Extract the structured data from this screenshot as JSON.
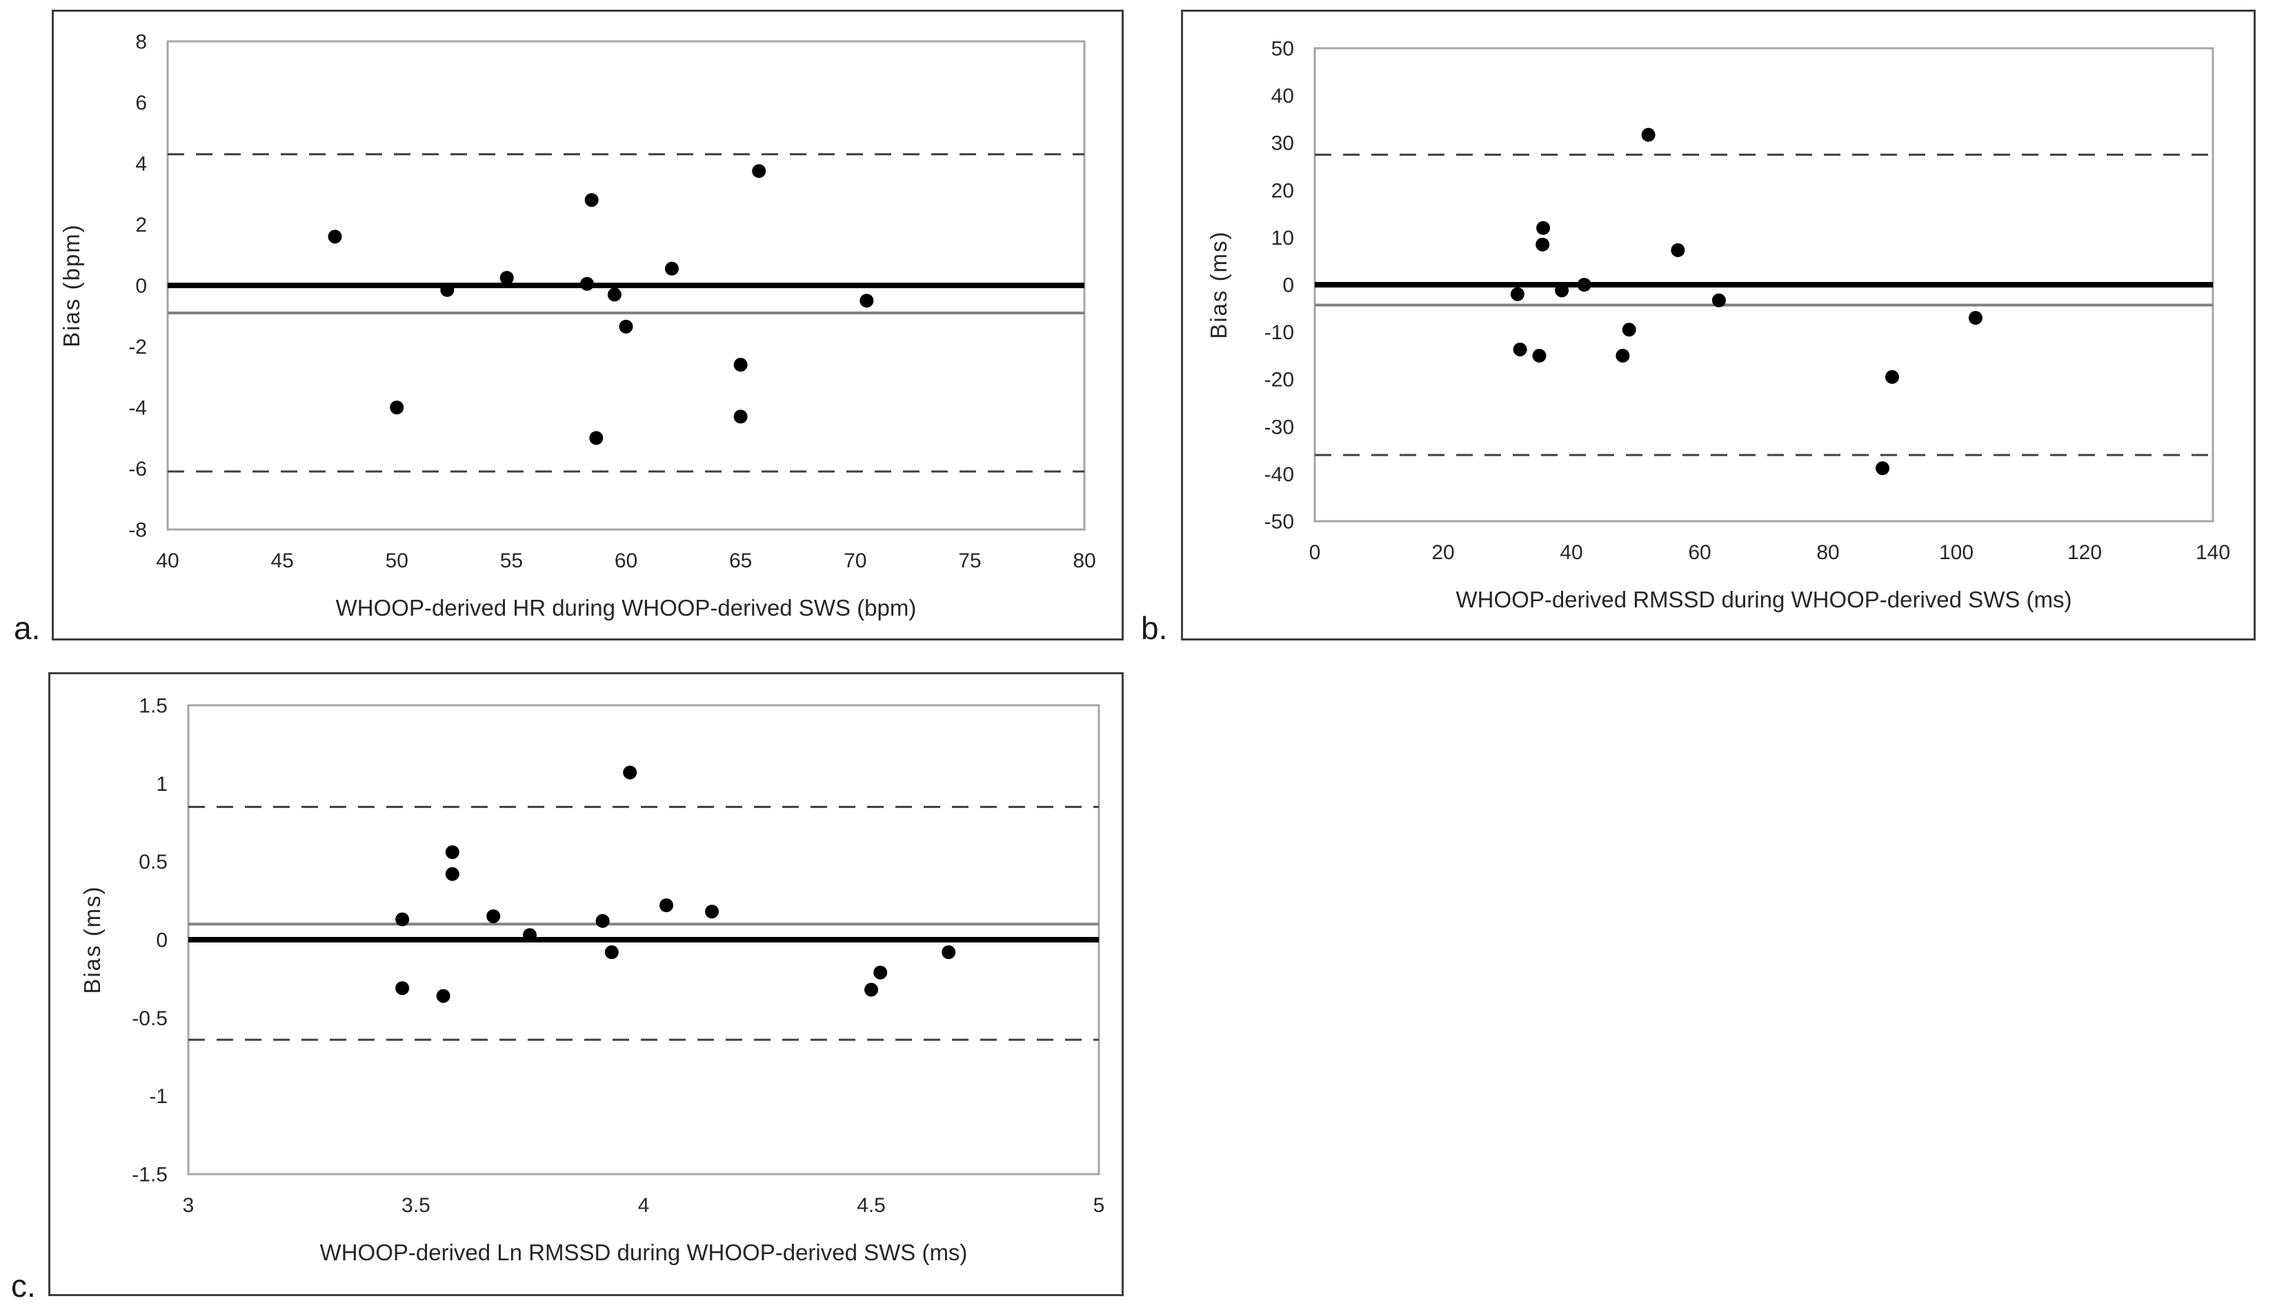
{
  "figure": {
    "background": "#ffffff",
    "description": "Bland-Altman plots of WHOOP-derived heart rate metrics during WHOOP-derived slow wave sleep"
  },
  "colors": {
    "point": "#000000",
    "zero_line": "#000000",
    "mean_line": "#808080",
    "loa_line": "#3f3f3f",
    "frame": "#a6a6a6",
    "panel_border": "#3f3f3f",
    "text": "#262626"
  },
  "chart_data": [
    {
      "type": "scatter",
      "panel": "a",
      "panel_label": "a.",
      "xlabel": "WHOOP-derived HR during WHOOP-derived SWS (bpm)",
      "ylabel": "Bias (bpm)",
      "xlim": [
        40,
        80
      ],
      "ylim": [
        -8,
        8
      ],
      "x_ticks": [
        40,
        45,
        50,
        55,
        60,
        65,
        70,
        75,
        80
      ],
      "y_ticks": [
        8,
        6,
        4,
        2,
        0,
        -2,
        -4,
        -6,
        -8
      ],
      "zero_line": 0,
      "mean_bias": -0.9,
      "upper_loa": 4.3,
      "lower_loa": -6.1,
      "grid": false,
      "legend": "none",
      "points": [
        {
          "x": 47.3,
          "y": 1.6
        },
        {
          "x": 50.0,
          "y": -4.0
        },
        {
          "x": 52.2,
          "y": -0.15
        },
        {
          "x": 54.8,
          "y": 0.25
        },
        {
          "x": 58.3,
          "y": 0.05
        },
        {
          "x": 58.5,
          "y": 2.8
        },
        {
          "x": 58.7,
          "y": -5.0
        },
        {
          "x": 59.5,
          "y": -0.3
        },
        {
          "x": 60.0,
          "y": -1.35
        },
        {
          "x": 62.0,
          "y": 0.55
        },
        {
          "x": 65.0,
          "y": -2.6
        },
        {
          "x": 65.0,
          "y": -4.3
        },
        {
          "x": 65.8,
          "y": 3.75
        },
        {
          "x": 70.5,
          "y": -0.5
        }
      ]
    },
    {
      "type": "scatter",
      "panel": "b",
      "panel_label": "b.",
      "xlabel": "WHOOP-derived RMSSD during WHOOP-derived SWS (ms)",
      "ylabel": "Bias (ms)",
      "xlim": [
        0,
        140
      ],
      "ylim": [
        -50,
        50
      ],
      "x_ticks": [
        0,
        20,
        40,
        60,
        80,
        100,
        120,
        140
      ],
      "y_ticks": [
        50,
        40,
        30,
        20,
        10,
        0,
        -10,
        -20,
        -30,
        -40,
        -50
      ],
      "zero_line": 0,
      "mean_bias": -4.3,
      "upper_loa": 27.5,
      "lower_loa": -36.0,
      "grid": false,
      "legend": "none",
      "points": [
        {
          "x": 31.6,
          "y": -2.0
        },
        {
          "x": 32.0,
          "y": -13.7
        },
        {
          "x": 35.0,
          "y": -15.0
        },
        {
          "x": 35.5,
          "y": 8.5
        },
        {
          "x": 35.6,
          "y": 12.0
        },
        {
          "x": 38.5,
          "y": -1.2
        },
        {
          "x": 42.0,
          "y": 0.0
        },
        {
          "x": 48.0,
          "y": -15.0
        },
        {
          "x": 49.0,
          "y": -9.5
        },
        {
          "x": 52.0,
          "y": 31.7
        },
        {
          "x": 56.6,
          "y": 7.3
        },
        {
          "x": 63.0,
          "y": -3.3
        },
        {
          "x": 88.5,
          "y": -38.8
        },
        {
          "x": 90.0,
          "y": -19.5
        },
        {
          "x": 103.0,
          "y": -7.0
        }
      ]
    },
    {
      "type": "scatter",
      "panel": "c",
      "panel_label": "c.",
      "xlabel": "WHOOP-derived Ln RMSSD during WHOOP-derived SWS (ms)",
      "ylabel": "Bias (ms)",
      "xlim": [
        3,
        5
      ],
      "ylim": [
        -1.5,
        1.5
      ],
      "x_ticks": [
        3,
        3.5,
        4,
        4.5,
        5
      ],
      "y_ticks": [
        1.5,
        1,
        0.5,
        0,
        -0.5,
        -1,
        -1.5
      ],
      "zero_line": 0,
      "mean_bias": 0.1,
      "upper_loa": 0.85,
      "lower_loa": -0.64,
      "grid": false,
      "legend": "none",
      "points": [
        {
          "x": 3.47,
          "y": 0.13
        },
        {
          "x": 3.47,
          "y": -0.31
        },
        {
          "x": 3.56,
          "y": -0.36
        },
        {
          "x": 3.58,
          "y": 0.56
        },
        {
          "x": 3.58,
          "y": 0.42
        },
        {
          "x": 3.67,
          "y": 0.15
        },
        {
          "x": 3.75,
          "y": 0.03
        },
        {
          "x": 3.91,
          "y": 0.12
        },
        {
          "x": 3.93,
          "y": -0.08
        },
        {
          "x": 3.97,
          "y": 1.07
        },
        {
          "x": 4.05,
          "y": 0.22
        },
        {
          "x": 4.15,
          "y": 0.18
        },
        {
          "x": 4.5,
          "y": -0.32
        },
        {
          "x": 4.52,
          "y": -0.21
        },
        {
          "x": 4.67,
          "y": -0.08
        }
      ]
    }
  ]
}
